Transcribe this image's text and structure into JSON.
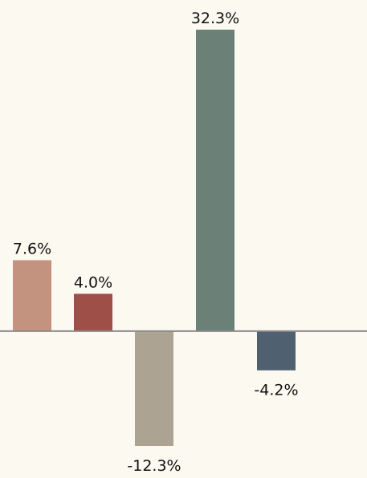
{
  "chart_data": {
    "type": "bar",
    "values": [
      7.6,
      4.0,
      -12.3,
      32.3,
      -4.2
    ],
    "value_labels": [
      "7.6%",
      "4.0%",
      "-12.3%",
      "32.3%",
      "-4.2%"
    ],
    "colors": [
      "#c49380",
      "#9e4f48",
      "#ada393",
      "#6b8178",
      "#4f6070"
    ]
  }
}
